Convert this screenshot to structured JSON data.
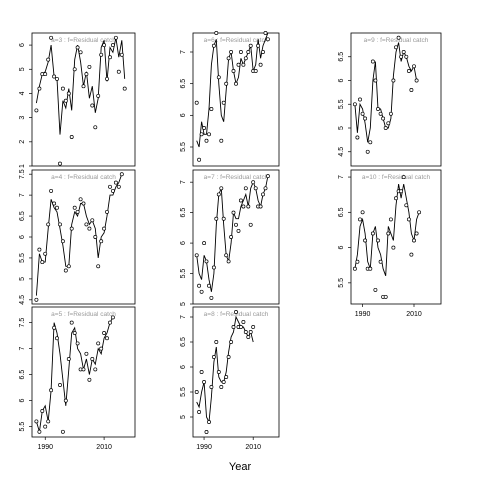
{
  "chart_data": {
    "type": "line",
    "xlabel": "Year",
    "x": [
      1987,
      1988,
      1989,
      1990,
      1991,
      1992,
      1993,
      1994,
      1995,
      1996,
      1997,
      1998,
      1999,
      2000,
      2001,
      2002,
      2003,
      2004,
      2005,
      2006,
      2007,
      2008,
      2009,
      2010,
      2011,
      2012,
      2013,
      2014,
      2015,
      2016,
      2017,
      2018,
      2019
    ],
    "xlim": [
      1985.5,
      2020.5
    ],
    "xticks": [
      1990,
      2010
    ],
    "panels": [
      {
        "title": "a=3  :  f=Residual catch",
        "ylim": [
          1,
          6.5
        ],
        "yticks": [
          1,
          2,
          3,
          4,
          5,
          6
        ],
        "line": [
          3.6,
          4.3,
          4.8,
          4.9,
          5.3,
          6.0,
          4.7,
          4.6,
          2.3,
          3.7,
          3.4,
          4.2,
          3.3,
          5.4,
          6.0,
          5.3,
          4.3,
          4.9,
          3.8,
          4.3,
          3.2,
          3.8,
          5.9,
          6.2,
          4.5,
          5.9,
          5.7,
          6.3,
          5.5,
          6.2,
          4.6
        ],
        "points": [
          3.3,
          4.2,
          4.8,
          4.8,
          5.4,
          6.3,
          4.7,
          4.6,
          1.1,
          4.2,
          3.7,
          4.0,
          2.2,
          5.0,
          5.9,
          5.7,
          4.3,
          4.8,
          5.1,
          3.5,
          2.6,
          3.9,
          5.6,
          6.0,
          4.6,
          5.5,
          6.0,
          6.3,
          4.9,
          5.6,
          4.2
        ]
      },
      {
        "title": "a=6  :  f=Residual catch",
        "ylim": [
          5.2,
          7.3
        ],
        "yticks": [
          5.5,
          6.0,
          6.5,
          7.0
        ],
        "line": [
          5.6,
          5.5,
          5.9,
          5.7,
          5.7,
          6.1,
          6.8,
          7.1,
          7.2,
          6.5,
          6.0,
          5.9,
          6.4,
          6.9,
          7.0,
          6.7,
          6.5,
          6.6,
          6.9,
          6.8,
          6.9,
          7.0,
          7.1,
          6.7,
          6.8,
          7.2,
          6.9,
          7.1,
          7.2,
          7.3
        ],
        "points": [
          6.2,
          5.3,
          5.7,
          5.8,
          5.6,
          5.7,
          6.1,
          7.1,
          7.3,
          6.6,
          5.6,
          6.2,
          6.5,
          6.9,
          7.0,
          6.7,
          6.5,
          6.8,
          7.0,
          6.8,
          6.9,
          7.0,
          7.1,
          6.7,
          6.7,
          7.1,
          6.8,
          7.0,
          7.3,
          7.2
        ]
      },
      {
        "title": "a=9  :  f=Residual catch",
        "ylim": [
          4.2,
          7.0
        ],
        "yticks": [
          4.5,
          5.0,
          5.5,
          6.0,
          6.5
        ],
        "line": [
          5.5,
          4.9,
          5.5,
          5.4,
          5.1,
          4.7,
          5.0,
          6.0,
          6.4,
          5.4,
          5.4,
          5.2,
          5.0,
          5.0,
          5.2,
          6.1,
          6.6,
          6.8,
          6.4,
          6.6,
          6.5,
          6.3,
          6.2,
          6.3,
          6.0
        ],
        "points": [
          5.5,
          4.8,
          5.6,
          5.3,
          5.2,
          4.5,
          4.7,
          6.4,
          6.0,
          5.4,
          5.3,
          5.2,
          5.0,
          5.1,
          5.3,
          6.0,
          6.7,
          6.9,
          6.5,
          6.6,
          6.5,
          6.2,
          5.8,
          6.3,
          6.0
        ]
      },
      {
        "title": "a=4  :  f=Residual catch",
        "ylim": [
          4.4,
          7.6
        ],
        "yticks": [
          4.5,
          5.0,
          5.5,
          6.0,
          6.5,
          7.0,
          7.5
        ],
        "line": [
          4.6,
          5.6,
          5.4,
          5.4,
          6.2,
          6.9,
          6.7,
          6.6,
          6.2,
          5.8,
          5.3,
          5.3,
          6.3,
          6.6,
          6.5,
          6.8,
          6.8,
          6.5,
          6.3,
          6.4,
          6.2,
          5.5,
          6.0,
          6.1,
          6.5,
          7.0,
          7.0,
          7.2,
          7.3,
          7.5
        ],
        "points": [
          4.5,
          5.7,
          5.4,
          5.6,
          6.3,
          7.1,
          6.8,
          6.7,
          6.3,
          5.9,
          5.2,
          5.3,
          6.2,
          6.7,
          6.6,
          6.9,
          6.8,
          6.3,
          6.2,
          6.4,
          6.0,
          5.3,
          5.9,
          6.2,
          6.6,
          7.2,
          7.1,
          7.3,
          7.2,
          7.5
        ]
      },
      {
        "title": "a=7  :  f=Residual catch",
        "ylim": [
          5.0,
          7.2
        ],
        "yticks": [
          5.0,
          5.5,
          6.0,
          6.5,
          7.0
        ],
        "line": [
          5.8,
          5.5,
          5.4,
          5.8,
          5.7,
          5.4,
          5.2,
          5.5,
          6.3,
          6.8,
          6.9,
          6.3,
          5.8,
          5.7,
          6.0,
          6.5,
          6.4,
          6.4,
          6.6,
          6.7,
          6.8,
          6.6,
          6.9,
          7.0,
          6.9,
          6.7,
          6.6,
          6.8,
          6.9,
          7.1
        ],
        "points": [
          5.8,
          5.3,
          5.2,
          6.0,
          5.7,
          5.3,
          5.1,
          5.6,
          6.4,
          6.8,
          6.9,
          6.4,
          5.8,
          5.7,
          6.1,
          6.5,
          6.3,
          6.2,
          6.7,
          6.6,
          6.9,
          6.6,
          6.3,
          7.0,
          6.9,
          6.6,
          6.6,
          6.8,
          6.9,
          7.1
        ]
      },
      {
        "title": "a=10  :  f=Residual catch",
        "ylim": [
          5.2,
          7.1
        ],
        "yticks": [
          5.5,
          6.0,
          6.5,
          7.0
        ],
        "line": [
          5.7,
          5.9,
          6.3,
          6.4,
          6.2,
          5.8,
          5.7,
          6.2,
          6.3,
          6.0,
          5.9,
          5.7,
          5.6,
          6.3,
          6.2,
          6.1,
          6.6,
          6.9,
          6.7,
          6.9,
          6.7,
          6.5,
          6.2,
          6.1,
          6.4,
          6.5
        ],
        "points": [
          5.7,
          5.8,
          6.4,
          6.5,
          6.1,
          5.7,
          5.7,
          6.2,
          5.4,
          6.1,
          5.8,
          5.3,
          5.3,
          6.2,
          6.4,
          6.0,
          6.7,
          6.8,
          6.8,
          7.0,
          6.6,
          6.4,
          5.9,
          6.1,
          6.2,
          6.5
        ]
      },
      {
        "title": "a=5  :  f=Residual catch",
        "ylim": [
          5.3,
          7.8
        ],
        "yticks": [
          5.5,
          6.0,
          6.5,
          7.0,
          7.5
        ],
        "line": [
          5.6,
          5.4,
          5.8,
          5.9,
          5.6,
          6.2,
          7.5,
          7.3,
          6.9,
          6.4,
          5.9,
          6.6,
          7.3,
          7.4,
          7.0,
          6.9,
          6.6,
          6.8,
          6.5,
          6.8,
          6.7,
          7.0,
          6.9,
          7.2,
          7.3,
          7.5,
          7.6
        ],
        "points": [
          5.6,
          5.4,
          5.8,
          5.5,
          5.6,
          6.2,
          7.4,
          7.2,
          6.3,
          5.4,
          6.0,
          6.8,
          7.5,
          7.3,
          7.1,
          6.6,
          6.6,
          6.9,
          6.4,
          6.8,
          6.6,
          7.1,
          7.0,
          7.3,
          7.2,
          7.5,
          7.6
        ]
      },
      {
        "title": "a=8  :  f=Residual catch",
        "ylim": [
          4.6,
          7.2
        ],
        "yticks": [
          5.0,
          5.5,
          6.0,
          6.5,
          7.0
        ],
        "line": [
          5.3,
          5.2,
          5.5,
          5.7,
          5.0,
          4.9,
          5.4,
          6.1,
          6.4,
          5.8,
          5.7,
          5.7,
          5.9,
          6.3,
          6.6,
          6.7,
          7.0,
          6.9,
          6.8,
          6.8,
          6.7,
          6.6,
          6.7,
          6.5
        ],
        "points": [
          5.5,
          5.1,
          5.9,
          5.7,
          4.7,
          4.9,
          5.6,
          6.2,
          6.5,
          5.9,
          5.6,
          5.7,
          5.8,
          6.2,
          6.5,
          6.8,
          7.1,
          6.8,
          6.8,
          6.9,
          6.7,
          6.6,
          6.7,
          6.8
        ]
      }
    ]
  }
}
